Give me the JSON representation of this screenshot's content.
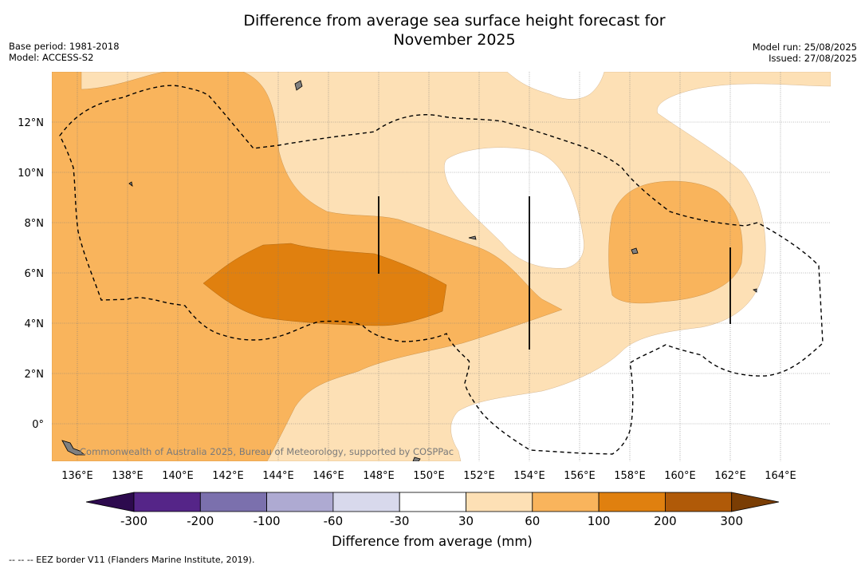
{
  "title_line1": "Difference from average sea surface height forecast for",
  "title_line2": "November 2025",
  "meta_left": [
    "Base period: 1981-2018",
    "Model: ACCESS-S2"
  ],
  "meta_right": [
    "Model run: 25/08/2025",
    "Issued: 27/08/2025"
  ],
  "copyright": "Commonwealth of Australia 2025, Bureau of Meteorology, supported by COSPPac",
  "footer": "--  --  -- EEZ border V11 (Flanders Marine Institute, 2019).",
  "chart_data": {
    "type": "heatmap",
    "title": "Difference from average sea surface height forecast for November 2025",
    "x_ticks": [
      "136°E",
      "138°E",
      "140°E",
      "142°E",
      "144°E",
      "146°E",
      "148°E",
      "150°E",
      "152°E",
      "154°E",
      "156°E",
      "158°E",
      "160°E",
      "162°E",
      "164°E"
    ],
    "y_ticks": [
      "12°N",
      "10°N",
      "8°N",
      "6°N",
      "4°N",
      "2°N",
      "0°"
    ],
    "xlim": [
      135,
      166
    ],
    "ylim": [
      -1.5,
      14
    ],
    "grid": true,
    "colorbar": {
      "label": "Difference from average (mm)",
      "ticks": [
        "-300",
        "-200",
        "-100",
        "-60",
        "-30",
        "30",
        "60",
        "100",
        "200",
        "300"
      ],
      "colors": [
        "#2d0a4e",
        "#552588",
        "#7b70ad",
        "#aeaad2",
        "#d8d9ec",
        "#ffffff",
        "#fde0b5",
        "#f9b45c",
        "#e0800f",
        "#b05a08",
        "#7a3d04"
      ]
    },
    "legend": "EEZ border dashed line",
    "palette": {
      "ocean_30_60": "#fde0b5",
      "ocean_60_100": "#f9b45c",
      "ocean_100_200": "#e0800f",
      "neutral": "#ffffff",
      "land": "#808080"
    }
  }
}
